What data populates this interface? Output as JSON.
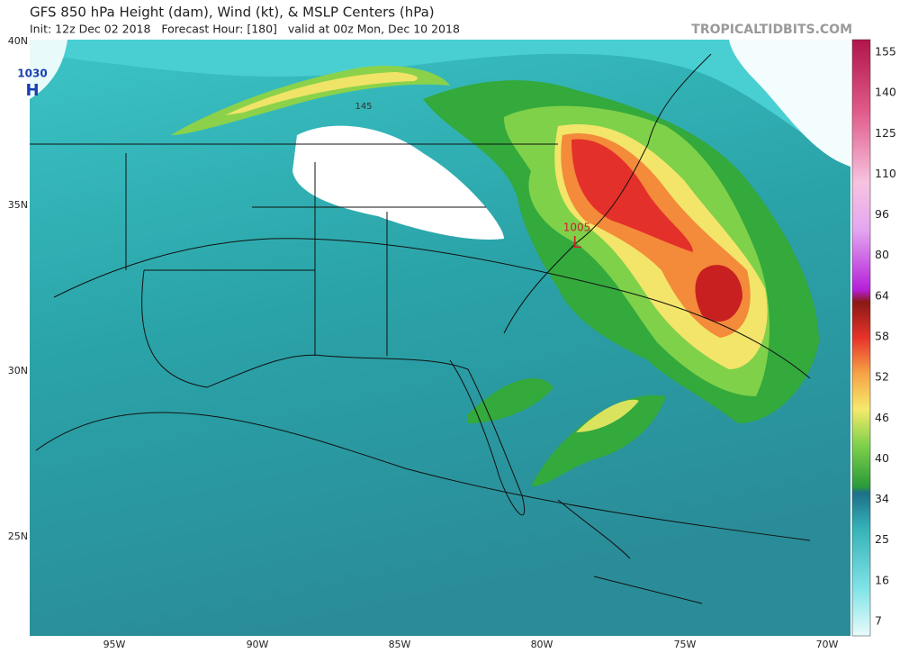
{
  "header": {
    "title": "GFS 850 hPa Height (dam), Wind (kt), & MSLP Centers (hPa)",
    "subtitle": "Init: 12z Dec 02 2018   Forecast Hour: [180]   valid at 00z Mon, Dec 10 2018",
    "brand": "TROPICALTIDBITS.COM"
  },
  "map": {
    "lat_labels": [
      "40N",
      "35N",
      "30N",
      "25N"
    ],
    "lon_labels": [
      "95W",
      "90W",
      "85W",
      "80W",
      "75W",
      "70W"
    ],
    "centers": [
      {
        "pressure": "1030",
        "symbol": "H"
      },
      {
        "pressure": "1005",
        "symbol": "L"
      }
    ],
    "contour_labels": [
      "145"
    ]
  },
  "colorbar": {
    "labels": [
      155,
      140,
      125,
      110,
      96,
      80,
      64,
      58,
      52,
      46,
      40,
      34,
      25,
      16,
      7
    ]
  }
}
